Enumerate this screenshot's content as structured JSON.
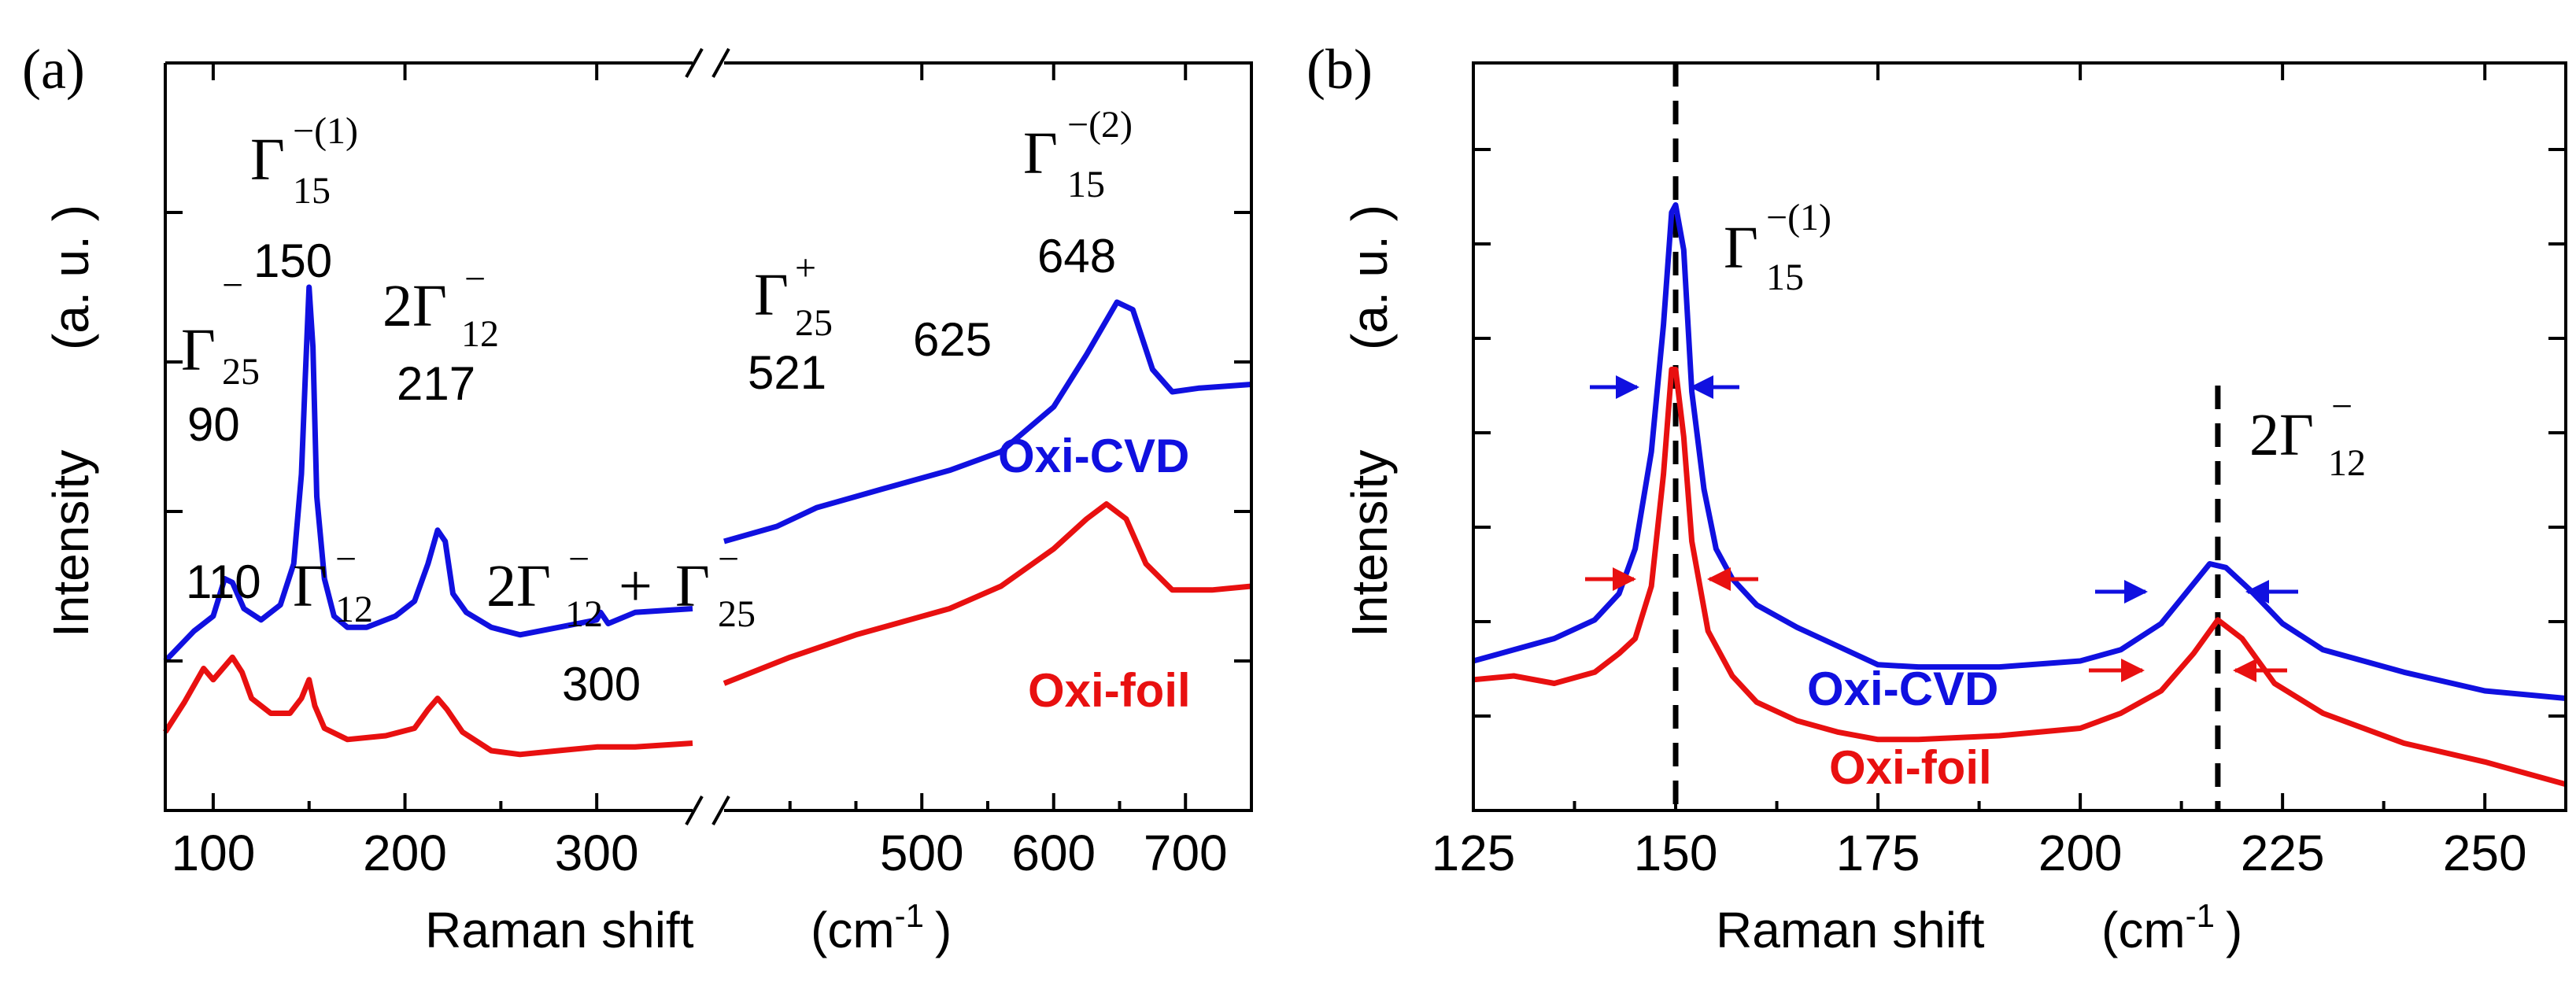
{
  "colors": {
    "cvd": "#1010e0",
    "foil": "#e81010",
    "axis": "#000000",
    "dashed": "#000000"
  },
  "chart_data": [
    {
      "panel": "(a)",
      "type": "line",
      "xlabel": "Raman shift",
      "xunit_base": "(cm",
      "xunit_exp": "-1",
      "xunit_close": ")",
      "ylabel": "Intensity",
      "yunit": "(a. u. )",
      "broken_x_axis": true,
      "segments": [
        {
          "xlim": [
            75,
            350
          ],
          "ticks": [
            100,
            200,
            300
          ],
          "tick_labels": [
            "100",
            "200",
            "300"
          ]
        },
        {
          "xlim": [
            350,
            750
          ],
          "ticks": [
            500,
            600,
            700
          ],
          "tick_labels": [
            "500",
            "600",
            "700"
          ]
        }
      ],
      "ylim": [
        0,
        10
      ],
      "series": [
        {
          "name": "Oxi-CVD",
          "label": "Oxi-CVD",
          "color": "cvd",
          "segments": [
            [
              [
                75,
                2.0
              ],
              [
                90,
                2.4
              ],
              [
                100,
                2.6
              ],
              [
                106,
                3.1
              ],
              [
                110,
                3.05
              ],
              [
                116,
                2.7
              ],
              [
                125,
                2.55
              ],
              [
                135,
                2.75
              ],
              [
                142,
                3.3
              ],
              [
                146,
                4.5
              ],
              [
                148,
                5.8
              ],
              [
                150,
                7.0
              ],
              [
                152,
                6.2
              ],
              [
                154,
                4.2
              ],
              [
                158,
                3.1
              ],
              [
                163,
                2.6
              ],
              [
                170,
                2.45
              ],
              [
                180,
                2.45
              ],
              [
                195,
                2.6
              ],
              [
                205,
                2.8
              ],
              [
                212,
                3.3
              ],
              [
                217,
                3.75
              ],
              [
                221,
                3.6
              ],
              [
                225,
                2.9
              ],
              [
                232,
                2.65
              ],
              [
                245,
                2.45
              ],
              [
                260,
                2.35
              ],
              [
                280,
                2.45
              ],
              [
                300,
                2.55
              ],
              [
                302,
                2.65
              ],
              [
                306,
                2.5
              ],
              [
                320,
                2.65
              ],
              [
                350,
                2.7
              ]
            ],
            [
              [
                350,
                3.6
              ],
              [
                390,
                3.8
              ],
              [
                420,
                4.05
              ],
              [
                470,
                4.3
              ],
              [
                521,
                4.55
              ],
              [
                560,
                4.8
              ],
              [
                600,
                5.4
              ],
              [
                625,
                6.1
              ],
              [
                648,
                6.8
              ],
              [
                660,
                6.7
              ],
              [
                675,
                5.9
              ],
              [
                690,
                5.6
              ],
              [
                710,
                5.65
              ],
              [
                750,
                5.7
              ]
            ]
          ]
        },
        {
          "name": "Oxi-foil",
          "label": "Oxi-foil",
          "color": "foil",
          "segments": [
            [
              [
                75,
                1.05
              ],
              [
                85,
                1.45
              ],
              [
                95,
                1.9
              ],
              [
                100,
                1.75
              ],
              [
                110,
                2.05
              ],
              [
                115,
                1.85
              ],
              [
                120,
                1.5
              ],
              [
                130,
                1.3
              ],
              [
                140,
                1.3
              ],
              [
                146,
                1.5
              ],
              [
                150,
                1.75
              ],
              [
                153,
                1.4
              ],
              [
                158,
                1.1
              ],
              [
                170,
                0.95
              ],
              [
                190,
                1.0
              ],
              [
                205,
                1.1
              ],
              [
                212,
                1.35
              ],
              [
                217,
                1.5
              ],
              [
                222,
                1.35
              ],
              [
                230,
                1.05
              ],
              [
                245,
                0.8
              ],
              [
                260,
                0.75
              ],
              [
                280,
                0.8
              ],
              [
                300,
                0.85
              ],
              [
                320,
                0.85
              ],
              [
                350,
                0.9
              ]
            ],
            [
              [
                350,
                1.7
              ],
              [
                400,
                2.05
              ],
              [
                450,
                2.35
              ],
              [
                521,
                2.7
              ],
              [
                560,
                3.0
              ],
              [
                600,
                3.5
              ],
              [
                625,
                3.9
              ],
              [
                640,
                4.1
              ],
              [
                655,
                3.9
              ],
              [
                670,
                3.3
              ],
              [
                690,
                2.95
              ],
              [
                720,
                2.95
              ],
              [
                750,
                3.0
              ]
            ]
          ]
        }
      ],
      "annotations": [
        {
          "sym": "Γ",
          "sub": "25",
          "sup": "−",
          "num": "90"
        },
        {
          "sym": "Γ",
          "sub": "15",
          "sup": "−(1)",
          "num": "150"
        },
        {
          "sym": "2Γ",
          "sub": "12",
          "sup": "−",
          "num": "217"
        },
        {
          "sym": "Γ",
          "sub": "25",
          "sup": "+",
          "num": "521"
        },
        {
          "num": "625"
        },
        {
          "sym": "Γ",
          "sub": "15",
          "sup": "−(2)",
          "num": "648"
        },
        {
          "sym": "Γ",
          "sub": "12",
          "sup": "−",
          "num": "110"
        },
        {
          "sym": "2Γ",
          "sub": "12",
          "sup": "−",
          "plus": "+",
          "sym2": "Γ",
          "sub2": "25",
          "sup2": "−",
          "num": "300"
        }
      ]
    },
    {
      "panel": "(b)",
      "type": "line",
      "xlabel": "Raman shift",
      "xunit_base": "(cm",
      "xunit_exp": "-1",
      "xunit_close": ")",
      "ylabel": "Intensity",
      "yunit": "(a. u. )",
      "xlim": [
        125,
        260
      ],
      "ticks": [
        125,
        150,
        175,
        200,
        225,
        250
      ],
      "tick_labels": [
        "125",
        "150",
        "175",
        "200",
        "225",
        "250"
      ],
      "ylim": [
        0,
        10
      ],
      "dashed_lines_x": [
        150,
        217
      ],
      "series": [
        {
          "name": "Oxi-CVD",
          "label": "Oxi-CVD",
          "color": "cvd",
          "points": [
            [
              125,
              2.0
            ],
            [
              130,
              2.15
            ],
            [
              135,
              2.3
            ],
            [
              140,
              2.55
            ],
            [
              143,
              2.9
            ],
            [
              145,
              3.5
            ],
            [
              147,
              4.8
            ],
            [
              148.5,
              6.5
            ],
            [
              149.5,
              8.0
            ],
            [
              150,
              8.1
            ],
            [
              151,
              7.5
            ],
            [
              152,
              5.6
            ],
            [
              153.5,
              4.3
            ],
            [
              155,
              3.5
            ],
            [
              157,
              3.1
            ],
            [
              160,
              2.75
            ],
            [
              165,
              2.45
            ],
            [
              170,
              2.2
            ],
            [
              175,
              1.95
            ],
            [
              180,
              1.92
            ],
            [
              190,
              1.92
            ],
            [
              200,
              2.0
            ],
            [
              205,
              2.15
            ],
            [
              210,
              2.5
            ],
            [
              213,
              2.9
            ],
            [
              216,
              3.3
            ],
            [
              218,
              3.25
            ],
            [
              221,
              2.95
            ],
            [
              225,
              2.5
            ],
            [
              230,
              2.15
            ],
            [
              240,
              1.85
            ],
            [
              250,
              1.6
            ],
            [
              260,
              1.5
            ]
          ]
        },
        {
          "name": "Oxi-foil",
          "label": "Oxi-foil",
          "color": "foil",
          "points": [
            [
              125,
              1.75
            ],
            [
              130,
              1.8
            ],
            [
              135,
              1.7
            ],
            [
              140,
              1.85
            ],
            [
              143,
              2.1
            ],
            [
              145,
              2.3
            ],
            [
              147,
              3.0
            ],
            [
              148.5,
              4.5
            ],
            [
              149.5,
              5.9
            ],
            [
              150,
              5.9
            ],
            [
              151,
              5.0
            ],
            [
              152,
              3.6
            ],
            [
              154,
              2.4
            ],
            [
              157,
              1.8
            ],
            [
              160,
              1.45
            ],
            [
              165,
              1.2
            ],
            [
              170,
              1.05
            ],
            [
              175,
              0.95
            ],
            [
              180,
              0.95
            ],
            [
              190,
              1.0
            ],
            [
              200,
              1.1
            ],
            [
              205,
              1.3
            ],
            [
              210,
              1.6
            ],
            [
              214,
              2.1
            ],
            [
              217,
              2.55
            ],
            [
              220,
              2.3
            ],
            [
              224,
              1.7
            ],
            [
              230,
              1.3
            ],
            [
              240,
              0.9
            ],
            [
              250,
              0.65
            ],
            [
              260,
              0.35
            ]
          ]
        }
      ],
      "annotations": [
        {
          "sym": "Γ",
          "sub": "15",
          "sup": "−(1)"
        },
        {
          "sym": "2Γ",
          "sub": "12",
          "sup": "−"
        }
      ]
    }
  ]
}
